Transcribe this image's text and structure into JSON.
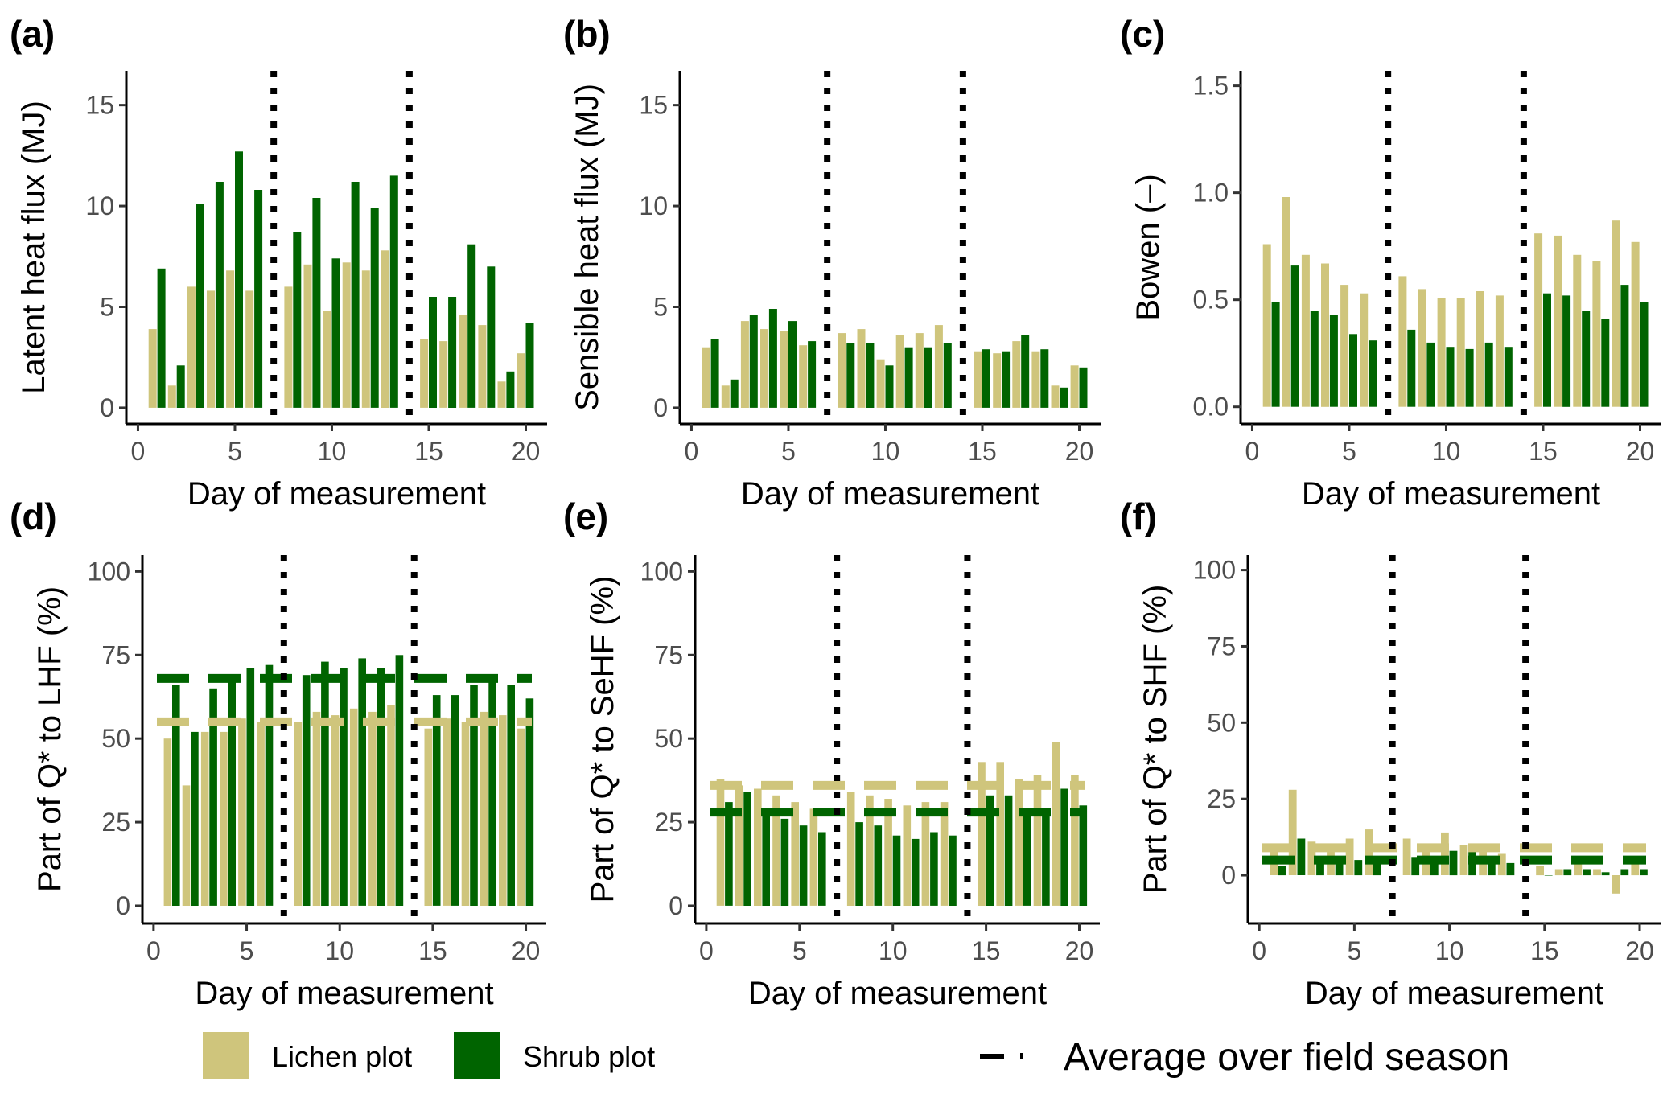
{
  "colors": {
    "lichen": "#CFC57C",
    "shrub": "#006400",
    "vline": "#000000",
    "axis": "#000000"
  },
  "legend": {
    "lichen_label": "Lichen plot",
    "shrub_label": "Shrub plot",
    "average_label": "Average over field season"
  },
  "chart_data": [
    {
      "type": "bar",
      "panel": "(a)",
      "ylabel": "Latent heat flux (MJ)",
      "xlabel": "Day of measurement",
      "xlim": [
        -0.6,
        21.1
      ],
      "ylim": [
        -0.8,
        16.7
      ],
      "xticks": [
        0,
        5,
        10,
        15,
        20
      ],
      "yticks": [
        0,
        5,
        10,
        15
      ],
      "ytick_labels": [
        "0",
        "5",
        "10",
        "15"
      ],
      "vlines": [
        7,
        14
      ],
      "series": [
        {
          "name": "Lichen plot",
          "x": [
            1,
            2,
            3,
            4,
            5,
            6,
            8,
            9,
            10,
            11,
            12,
            13,
            15,
            16,
            17,
            18,
            19,
            20
          ],
          "values": [
            3.9,
            1.1,
            6.0,
            5.8,
            6.8,
            5.8,
            6.0,
            7.1,
            4.8,
            7.2,
            6.8,
            7.8,
            3.4,
            3.3,
            4.6,
            4.1,
            1.3,
            2.7
          ]
        },
        {
          "name": "Shrub plot",
          "x": [
            1,
            2,
            3,
            4,
            5,
            6,
            8,
            9,
            10,
            11,
            12,
            13,
            15,
            16,
            17,
            18,
            19,
            20
          ],
          "values": [
            6.9,
            2.1,
            10.1,
            11.2,
            12.7,
            10.8,
            8.7,
            10.4,
            7.4,
            11.2,
            9.9,
            11.5,
            5.5,
            5.5,
            8.1,
            7.0,
            1.8,
            4.2
          ]
        }
      ]
    },
    {
      "type": "bar",
      "panel": "(b)",
      "ylabel": "Sensible heat flux (MJ)",
      "xlabel": "Day of measurement",
      "xlim": [
        -0.6,
        21.1
      ],
      "ylim": [
        -0.8,
        16.7
      ],
      "xticks": [
        0,
        5,
        10,
        15,
        20
      ],
      "yticks": [
        0,
        5,
        10,
        15
      ],
      "ytick_labels": [
        "0",
        "5",
        "10",
        "15"
      ],
      "vlines": [
        7,
        14
      ],
      "series": [
        {
          "name": "Lichen plot",
          "x": [
            1,
            2,
            3,
            4,
            5,
            6,
            8,
            9,
            10,
            11,
            12,
            13,
            15,
            16,
            17,
            18,
            19,
            20
          ],
          "values": [
            3.0,
            1.1,
            4.3,
            3.9,
            3.8,
            3.1,
            3.7,
            3.9,
            2.4,
            3.6,
            3.7,
            4.1,
            2.8,
            2.7,
            3.3,
            2.8,
            1.1,
            2.1
          ]
        },
        {
          "name": "Shrub plot",
          "x": [
            1,
            2,
            3,
            4,
            5,
            6,
            8,
            9,
            10,
            11,
            12,
            13,
            15,
            16,
            17,
            18,
            19,
            20
          ],
          "values": [
            3.4,
            1.4,
            4.6,
            4.9,
            4.3,
            3.3,
            3.2,
            3.2,
            2.1,
            3.0,
            3.0,
            3.2,
            2.9,
            2.8,
            3.6,
            2.9,
            1.0,
            2.0
          ]
        }
      ]
    },
    {
      "type": "bar",
      "panel": "(c)",
      "ylabel": "Bowen (–)",
      "xlabel": "Day of measurement",
      "xlim": [
        -0.6,
        21.1
      ],
      "ylim": [
        -0.08,
        1.57
      ],
      "xticks": [
        0,
        5,
        10,
        15,
        20
      ],
      "yticks": [
        0,
        0.5,
        1.0,
        1.5
      ],
      "ytick_labels": [
        "0.0",
        "0.5",
        "1.0",
        "1.5"
      ],
      "vlines": [
        7,
        14
      ],
      "series": [
        {
          "name": "Lichen plot",
          "x": [
            1,
            2,
            3,
            4,
            5,
            6,
            8,
            9,
            10,
            11,
            12,
            13,
            15,
            16,
            17,
            18,
            19,
            20
          ],
          "values": [
            0.76,
            0.98,
            0.71,
            0.67,
            0.57,
            0.53,
            0.61,
            0.55,
            0.51,
            0.51,
            0.54,
            0.52,
            0.81,
            0.8,
            0.71,
            0.68,
            0.87,
            0.77
          ]
        },
        {
          "name": "Shrub plot",
          "x": [
            1,
            2,
            3,
            4,
            5,
            6,
            8,
            9,
            10,
            11,
            12,
            13,
            15,
            16,
            17,
            18,
            19,
            20
          ],
          "values": [
            0.49,
            0.66,
            0.45,
            0.43,
            0.34,
            0.31,
            0.36,
            0.3,
            0.28,
            0.27,
            0.3,
            0.28,
            0.53,
            0.52,
            0.45,
            0.41,
            0.57,
            0.49
          ]
        }
      ]
    },
    {
      "type": "bar",
      "panel": "(d)",
      "ylabel": "Part of Q* to LHF (%)",
      "xlabel": "Day of measurement",
      "xlim": [
        -0.6,
        21.1
      ],
      "ylim": [
        -5.3,
        104.9
      ],
      "xticks": [
        0,
        5,
        10,
        15,
        20
      ],
      "yticks": [
        0,
        25,
        50,
        75,
        100
      ],
      "ytick_labels": [
        "0",
        "25",
        "50",
        "75",
        "100"
      ],
      "vlines": [
        7,
        14
      ],
      "averages": {
        "Lichen plot": 55,
        "Shrub plot": 68
      },
      "series": [
        {
          "name": "Lichen plot",
          "x": [
            1,
            2,
            3,
            4,
            5,
            6,
            8,
            9,
            10,
            11,
            12,
            13,
            15,
            16,
            17,
            18,
            19,
            20
          ],
          "values": [
            50,
            36,
            52,
            52,
            56,
            55,
            55,
            58,
            57,
            59,
            58,
            60,
            53,
            56,
            55,
            58,
            57,
            53
          ]
        },
        {
          "name": "Shrub plot",
          "x": [
            1,
            2,
            3,
            4,
            5,
            6,
            8,
            9,
            10,
            11,
            12,
            13,
            15,
            16,
            17,
            18,
            19,
            20
          ],
          "values": [
            66,
            52,
            65,
            67,
            71,
            72,
            69,
            73,
            71,
            74,
            71,
            75,
            63,
            63,
            66,
            68,
            66,
            62
          ]
        }
      ]
    },
    {
      "type": "bar",
      "panel": "(e)",
      "ylabel": "Part of Q* to SeHF (%)",
      "xlabel": "Day of measurement",
      "xlim": [
        -0.6,
        21.1
      ],
      "ylim": [
        -5.3,
        104.9
      ],
      "xticks": [
        0,
        5,
        10,
        15,
        20
      ],
      "yticks": [
        0,
        25,
        50,
        75,
        100
      ],
      "ytick_labels": [
        "0",
        "25",
        "50",
        "75",
        "100"
      ],
      "vlines": [
        7,
        14
      ],
      "averages": {
        "Lichen plot": 36,
        "Shrub plot": 28
      },
      "series": [
        {
          "name": "Lichen plot",
          "x": [
            1,
            2,
            3,
            4,
            5,
            6,
            8,
            9,
            10,
            11,
            12,
            13,
            15,
            16,
            17,
            18,
            19,
            20
          ],
          "values": [
            38,
            36,
            35,
            33,
            31,
            29,
            34,
            33,
            32,
            30,
            31,
            31,
            43,
            43,
            38,
            39,
            49,
            39
          ]
        },
        {
          "name": "Shrub plot",
          "x": [
            1,
            2,
            3,
            4,
            5,
            6,
            8,
            9,
            10,
            11,
            12,
            13,
            15,
            16,
            17,
            18,
            19,
            20
          ],
          "values": [
            31,
            34,
            28,
            26,
            24,
            22,
            25,
            24,
            21,
            20,
            22,
            21,
            33,
            33,
            29,
            29,
            35,
            30
          ]
        }
      ]
    },
    {
      "type": "bar",
      "panel": "(f)",
      "ylabel": "Part of Q* to SHF (%)",
      "xlabel": "Day of measurement",
      "xlim": [
        -0.6,
        21.1
      ],
      "ylim": [
        -15.8,
        104.9
      ],
      "xticks": [
        0,
        5,
        10,
        15,
        20
      ],
      "yticks": [
        0,
        25,
        50,
        75,
        100
      ],
      "ytick_labels": [
        "0",
        "25",
        "50",
        "75",
        "100"
      ],
      "vlines": [
        7,
        14
      ],
      "averages": {
        "Lichen plot": 9,
        "Shrub plot": 5
      },
      "series": [
        {
          "name": "Lichen plot",
          "x": [
            1,
            2,
            3,
            4,
            5,
            6,
            8,
            9,
            10,
            11,
            12,
            13,
            15,
            16,
            17,
            18,
            19,
            20
          ],
          "values": [
            10,
            28,
            11,
            10,
            12,
            15,
            12,
            9,
            14,
            10,
            9,
            7,
            3,
            2,
            4,
            2,
            -6,
            4
          ]
        },
        {
          "name": "Shrub plot",
          "x": [
            1,
            2,
            3,
            4,
            5,
            6,
            8,
            9,
            10,
            11,
            12,
            13,
            15,
            16,
            17,
            18,
            19,
            20
          ],
          "values": [
            3,
            12,
            6,
            6,
            5,
            6,
            6,
            6,
            8,
            8,
            6,
            4,
            0,
            2,
            2,
            1,
            2,
            2
          ]
        }
      ]
    }
  ]
}
